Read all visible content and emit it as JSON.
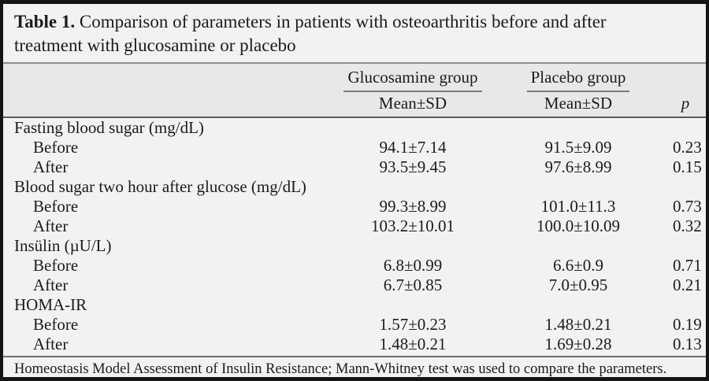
{
  "title": {
    "label": "Table 1.",
    "line1_rest": "Comparison of parameters in patients with osteoarthritis before and after",
    "line2": "treatment with glucosamine or placebo"
  },
  "header": {
    "groups": [
      {
        "label": "Glucosamine group",
        "sub": "Mean±SD"
      },
      {
        "label": "Placebo group",
        "sub": "Mean±SD"
      }
    ],
    "p_label": "p"
  },
  "sections": [
    {
      "name": "Fasting blood sugar (mg/dL)",
      "rows": [
        {
          "label": "Before",
          "glucosamine": "94.1±7.14",
          "placebo": "91.5±9.09",
          "p": "0.23"
        },
        {
          "label": "After",
          "glucosamine": "93.5±9.45",
          "placebo": "97.6±8.99",
          "p": "0.15"
        }
      ]
    },
    {
      "name": "Blood sugar two hour after glucose (mg/dL)",
      "rows": [
        {
          "label": "Before",
          "glucosamine": "99.3±8.99",
          "placebo": "101.0±11.3",
          "p": "0.73"
        },
        {
          "label": "After",
          "glucosamine": "103.2±10.01",
          "placebo": "100.0±10.09",
          "p": "0.32"
        }
      ]
    },
    {
      "name": "Insülin (µU/L)",
      "rows": [
        {
          "label": "Before",
          "glucosamine": "6.8±0.99",
          "placebo": "6.6±0.9",
          "p": "0.71"
        },
        {
          "label": "After",
          "glucosamine": "6.7±0.85",
          "placebo": "7.0±0.95",
          "p": "0.21"
        }
      ]
    },
    {
      "name": "HOMA-IR",
      "rows": [
        {
          "label": "Before",
          "glucosamine": "1.57±0.23",
          "placebo": "1.48±0.21",
          "p": "0.19"
        },
        {
          "label": "After",
          "glucosamine": "1.48±0.21",
          "placebo": "1.69±0.28",
          "p": "0.13"
        }
      ]
    }
  ],
  "footnote": "Homeostasis Model Assessment of Insulin Resistance; Mann-Whitney test was used to compare the parameters.",
  "colors": {
    "border": "#141414",
    "background": "#f2f2f0",
    "header_band": "#e7e8ea",
    "rule_light": "#8d8d8d",
    "rule_dark": "#5a5a5a",
    "text": "#1b1b1b"
  }
}
